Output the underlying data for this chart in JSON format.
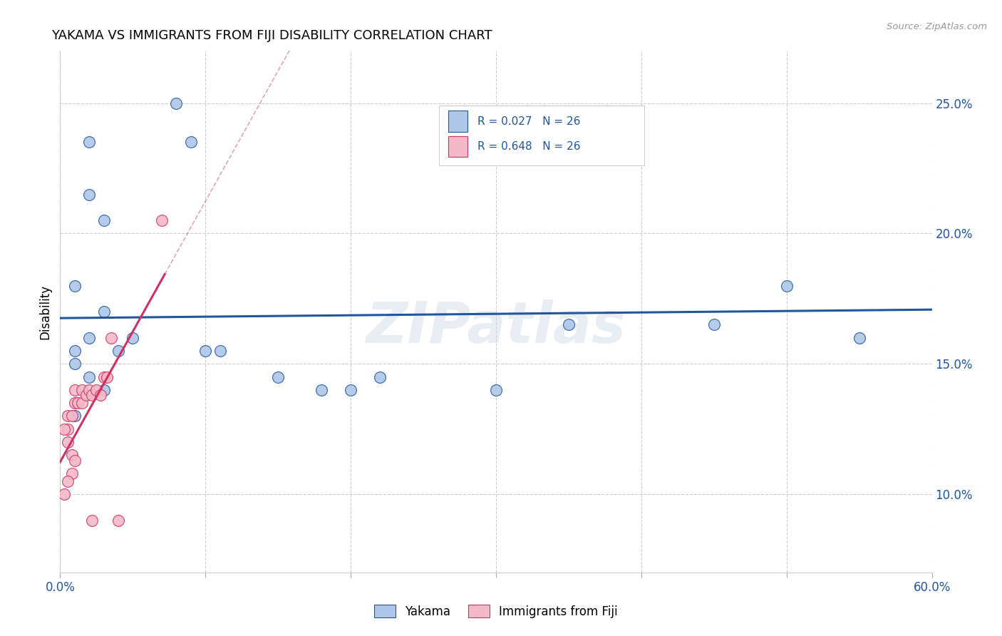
{
  "title": "YAKAMA VS IMMIGRANTS FROM FIJI DISABILITY CORRELATION CHART",
  "source": "Source: ZipAtlas.com",
  "ylabel": "Disability",
  "xlim": [
    0.0,
    0.6
  ],
  "ylim": [
    0.07,
    0.27
  ],
  "xticks": [
    0.0,
    0.1,
    0.2,
    0.3,
    0.4,
    0.5,
    0.6
  ],
  "xticklabels": [
    "0.0%",
    "",
    "",
    "",
    "",
    "",
    "60.0%"
  ],
  "yticks": [
    0.1,
    0.15,
    0.2,
    0.25
  ],
  "yticklabels": [
    "10.0%",
    "15.0%",
    "20.0%",
    "25.0%"
  ],
  "blue_R": 0.027,
  "blue_N": 26,
  "pink_R": 0.648,
  "pink_N": 26,
  "blue_scatter_x": [
    0.02,
    0.04,
    0.03,
    0.05,
    0.02,
    0.02,
    0.03,
    0.01,
    0.01,
    0.01,
    0.02,
    0.03,
    0.01,
    0.15,
    0.18,
    0.22,
    0.2,
    0.3,
    0.35,
    0.45,
    0.5,
    0.55,
    0.08,
    0.09,
    0.1,
    0.11
  ],
  "blue_scatter_y": [
    0.16,
    0.155,
    0.17,
    0.16,
    0.235,
    0.215,
    0.205,
    0.18,
    0.155,
    0.15,
    0.145,
    0.14,
    0.13,
    0.145,
    0.14,
    0.145,
    0.14,
    0.14,
    0.165,
    0.165,
    0.18,
    0.16,
    0.25,
    0.235,
    0.155,
    0.155
  ],
  "pink_scatter_x": [
    0.005,
    0.005,
    0.008,
    0.01,
    0.012,
    0.01,
    0.015,
    0.015,
    0.018,
    0.02,
    0.022,
    0.025,
    0.028,
    0.03,
    0.032,
    0.008,
    0.005,
    0.003,
    0.003,
    0.005,
    0.008,
    0.01,
    0.07,
    0.035,
    0.04,
    0.022
  ],
  "pink_scatter_y": [
    0.13,
    0.125,
    0.13,
    0.135,
    0.135,
    0.14,
    0.135,
    0.14,
    0.138,
    0.14,
    0.138,
    0.14,
    0.138,
    0.145,
    0.145,
    0.108,
    0.105,
    0.1,
    0.125,
    0.12,
    0.115,
    0.113,
    0.205,
    0.16,
    0.09,
    0.09
  ],
  "blue_color": "#aec6e8",
  "blue_line_color": "#2055a0",
  "pink_color": "#f4b8c8",
  "pink_line_color": "#d03060",
  "watermark": "ZIPatlas",
  "background_color": "#ffffff",
  "grid_color": "#cccccc"
}
